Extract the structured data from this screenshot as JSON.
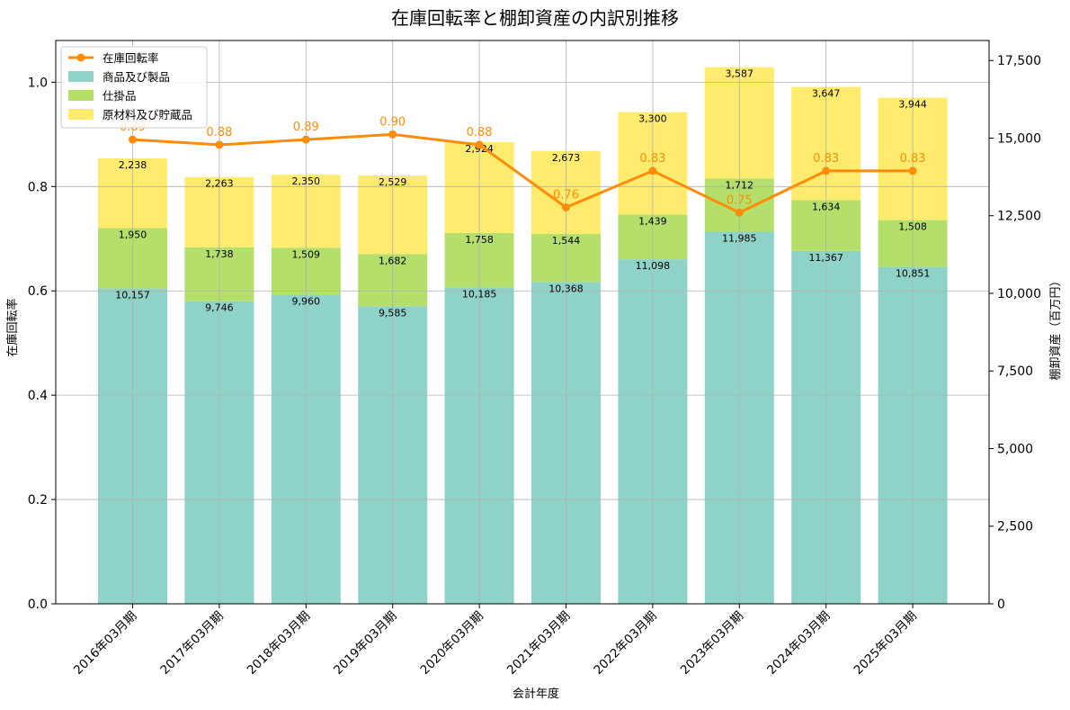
{
  "chart_data": {
    "type": "bar",
    "title": "在庫回転率と棚卸資産の内訳別推移",
    "xlabel": "会計年度",
    "ylabel_left": "在庫回転率",
    "ylabel_right": "棚卸資産（百万円）",
    "categories": [
      "2016年03月期",
      "2017年03月期",
      "2018年03月期",
      "2019年03月期",
      "2020年03月期",
      "2021年03月期",
      "2022年03月期",
      "2023年03月期",
      "2024年03月期",
      "2025年03月期"
    ],
    "left_axis": {
      "ylim": [
        0,
        1.08
      ],
      "ticks": [
        "0.0",
        "0.2",
        "0.4",
        "0.6",
        "0.8",
        "1.0"
      ]
    },
    "right_axis": {
      "ylim": [
        0,
        18144
      ],
      "ticks": [
        "0",
        "2,500",
        "5,000",
        "7,500",
        "10,000",
        "12,500",
        "15,000",
        "17,500"
      ]
    },
    "grid": true,
    "legend_position": "top-left",
    "series": [
      {
        "name": "商品及び製品",
        "type": "bar",
        "axis": "right",
        "color": "#8fd3c8",
        "values": [
          10157,
          9746,
          9960,
          9585,
          10185,
          10368,
          11098,
          11985,
          11367,
          10851
        ],
        "labels": [
          "10,157",
          "9,746",
          "9,960",
          "9,585",
          "10,185",
          "10,368",
          "11,098",
          "11,985",
          "11,367",
          "10,851"
        ]
      },
      {
        "name": "仕掛品",
        "type": "bar",
        "axis": "right",
        "color": "#b3df6a",
        "values": [
          1950,
          1738,
          1509,
          1682,
          1758,
          1544,
          1439,
          1712,
          1634,
          1508
        ],
        "labels": [
          "1,950",
          "1,738",
          "1,509",
          "1,682",
          "1,758",
          "1,544",
          "1,439",
          "1,712",
          "1,634",
          "1,508"
        ]
      },
      {
        "name": "原材料及び貯蔵品",
        "type": "bar",
        "axis": "right",
        "color": "#ffec6e",
        "values": [
          2238,
          2263,
          2350,
          2529,
          2924,
          2673,
          3300,
          3587,
          3647,
          3944
        ],
        "labels": [
          "2,238",
          "2,263",
          "2,350",
          "2,529",
          "2,924",
          "2,673",
          "3,300",
          "3,587",
          "3,647",
          "3,944"
        ]
      },
      {
        "name": "在庫回転率",
        "type": "line",
        "axis": "left",
        "color": "#ff8c0a",
        "values": [
          0.89,
          0.88,
          0.89,
          0.9,
          0.88,
          0.76,
          0.83,
          0.75,
          0.83,
          0.83
        ],
        "labels": [
          "0.89",
          "0.88",
          "0.89",
          "0.90",
          "0.88",
          "0.76",
          "0.83",
          "0.75",
          "0.83",
          "0.83"
        ]
      }
    ]
  }
}
